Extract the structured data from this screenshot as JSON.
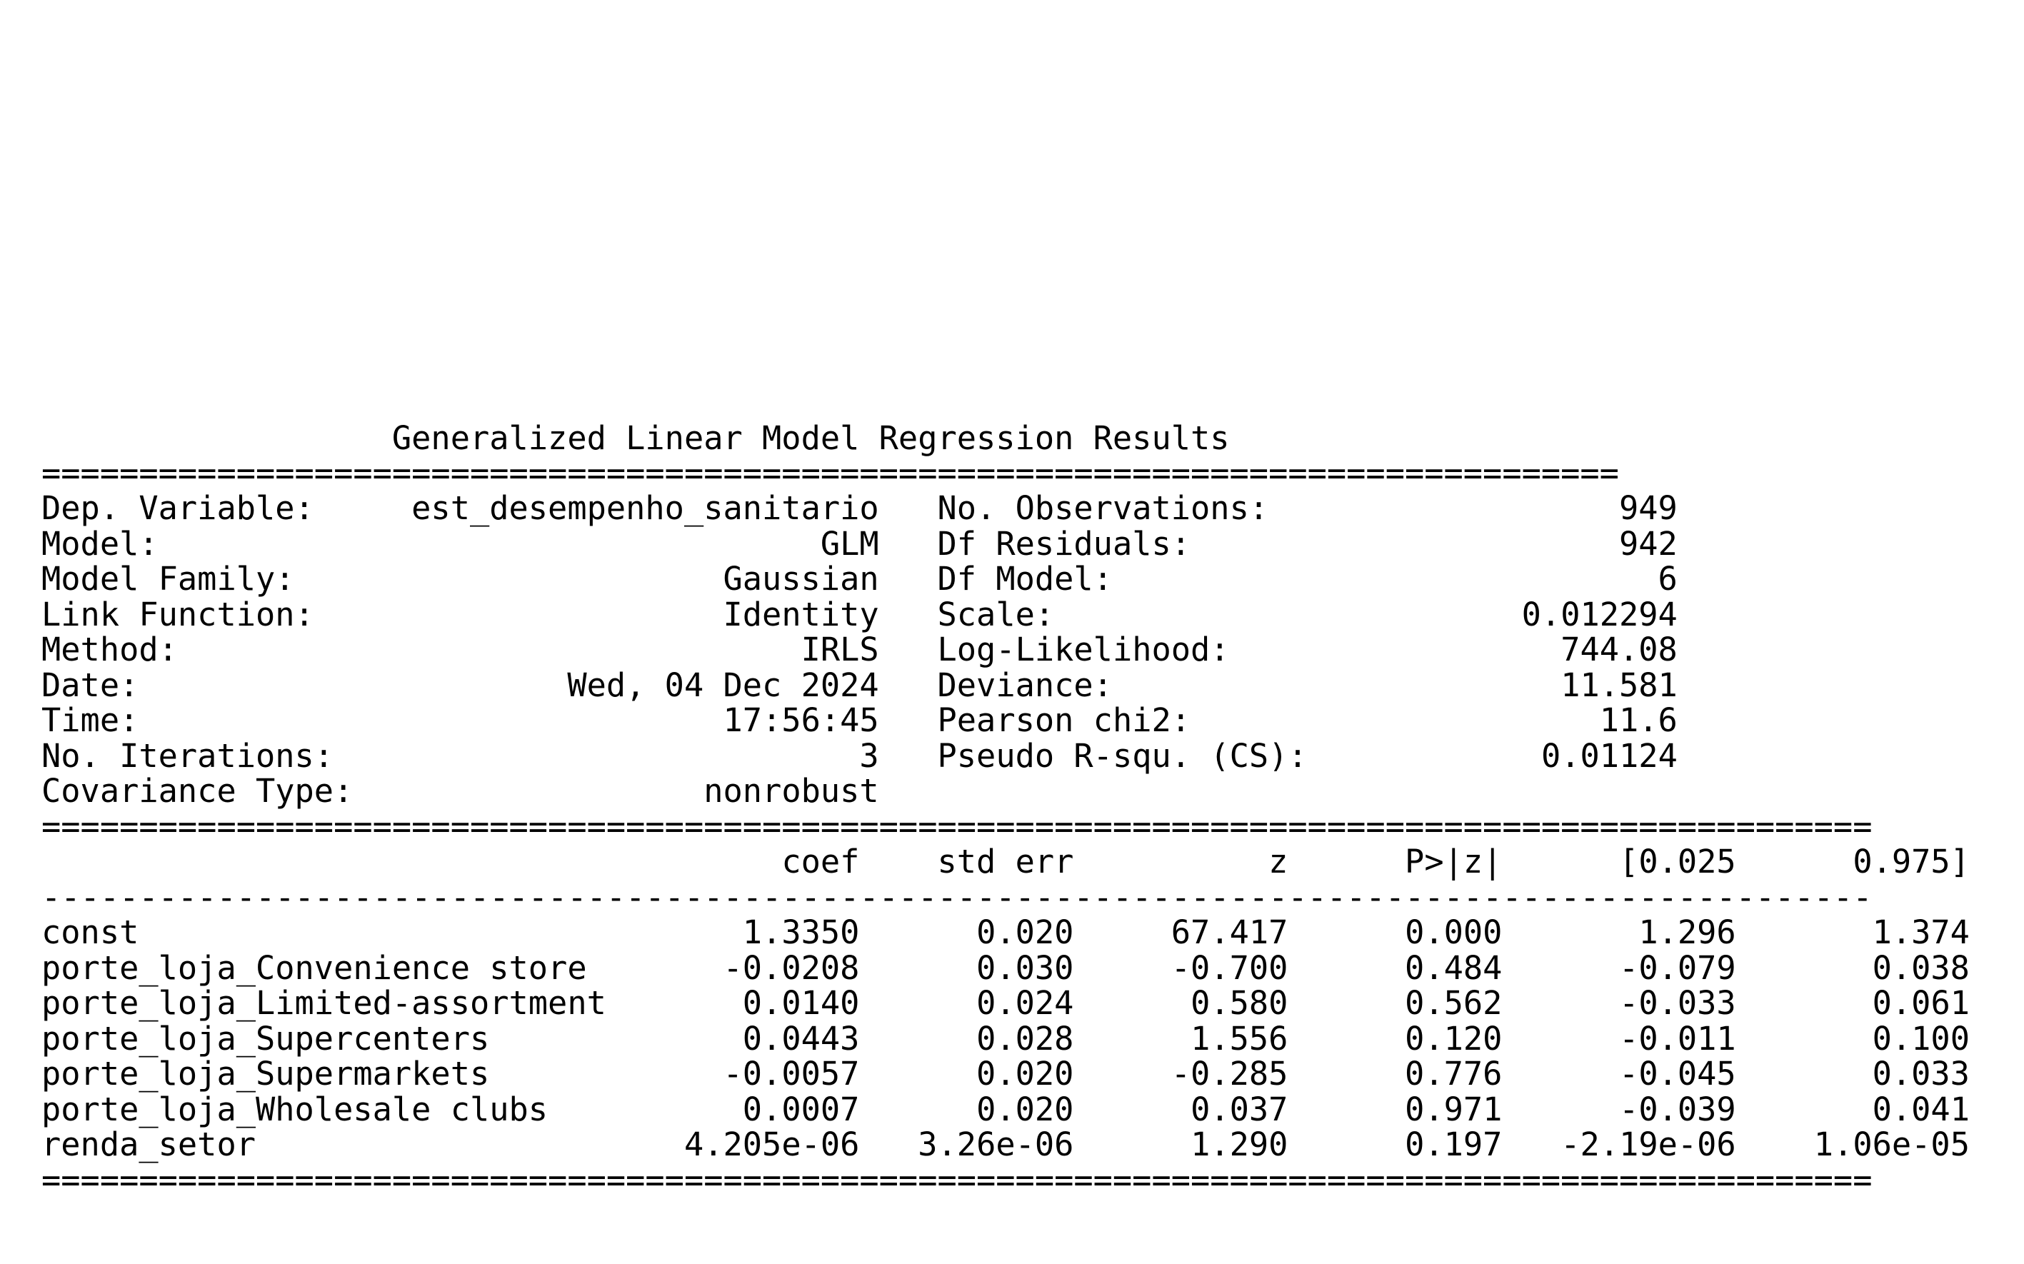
{
  "title": "Generalized Linear Model Regression Results",
  "rules": {
    "thick_short": "=================================================================================",
    "thick_long": "==============================================================================================",
    "thin_long": "----------------------------------------------------------------------------------------------"
  },
  "info": [
    {
      "left_label": "Dep. Variable:",
      "left_value": "est_desempenho_sanitario",
      "right_label": "No. Observations:",
      "right_value": "949"
    },
    {
      "left_label": "Model:",
      "left_value": "GLM",
      "right_label": "Df Residuals:",
      "right_value": "942"
    },
    {
      "left_label": "Model Family:",
      "left_value": "Gaussian",
      "right_label": "Df Model:",
      "right_value": "6"
    },
    {
      "left_label": "Link Function:",
      "left_value": "Identity",
      "right_label": "Scale:",
      "right_value": "0.012294"
    },
    {
      "left_label": "Method:",
      "left_value": "IRLS",
      "right_label": "Log-Likelihood:",
      "right_value": "744.08"
    },
    {
      "left_label": "Date:",
      "left_value": "Wed, 04 Dec 2024",
      "right_label": "Deviance:",
      "right_value": "11.581"
    },
    {
      "left_label": "Time:",
      "left_value": "17:56:45",
      "right_label": "Pearson chi2:",
      "right_value": "11.6"
    },
    {
      "left_label": "No. Iterations:",
      "left_value": "3",
      "right_label": "Pseudo R-squ. (CS):",
      "right_value": "0.01124"
    },
    {
      "left_label": "Covariance Type:",
      "left_value": "nonrobust",
      "right_label": "",
      "right_value": ""
    }
  ],
  "coef_table": {
    "columns": [
      "coef",
      "std err",
      "z",
      "P>|z|",
      "[0.025",
      "0.975]"
    ],
    "rows": [
      {
        "name": "const",
        "values": [
          "1.3350",
          "0.020",
          "67.417",
          "0.000",
          "1.296",
          "1.374"
        ]
      },
      {
        "name": "porte_loja_Convenience store",
        "values": [
          "-0.0208",
          "0.030",
          "-0.700",
          "0.484",
          "-0.079",
          "0.038"
        ]
      },
      {
        "name": "porte_loja_Limited-assortment",
        "values": [
          "0.0140",
          "0.024",
          "0.580",
          "0.562",
          "-0.033",
          "0.061"
        ]
      },
      {
        "name": "porte_loja_Supercenters",
        "values": [
          "0.0443",
          "0.028",
          "1.556",
          "0.120",
          "-0.011",
          "0.100"
        ]
      },
      {
        "name": "porte_loja_Supermarkets",
        "values": [
          "-0.0057",
          "0.020",
          "-0.285",
          "0.776",
          "-0.045",
          "0.033"
        ]
      },
      {
        "name": "porte_loja_Wholesale clubs",
        "values": [
          "0.0007",
          "0.020",
          "0.037",
          "0.971",
          "-0.039",
          "0.041"
        ]
      },
      {
        "name": "renda_setor",
        "values": [
          "4.205e-06",
          "3.26e-06",
          "1.290",
          "0.197",
          "-2.19e-06",
          "1.06e-05"
        ]
      }
    ]
  }
}
